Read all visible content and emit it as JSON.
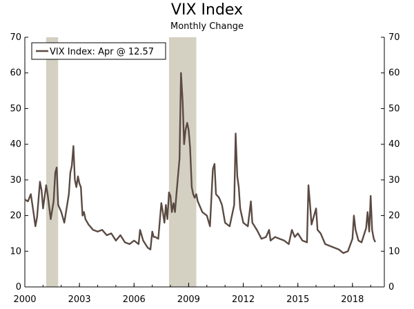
{
  "chart_data": {
    "type": "line",
    "title": "VIX Index",
    "subtitle": "Monthly Change",
    "legend": {
      "position": "top-left",
      "entries": [
        "VIX Index: Apr @ 12.57"
      ]
    },
    "ylim": [
      0,
      70
    ],
    "y_ticks": [
      0,
      10,
      20,
      30,
      40,
      50,
      60,
      70
    ],
    "y_tick_labels": [
      "0",
      "10",
      "20",
      "30",
      "40",
      "50",
      "60",
      "70"
    ],
    "xlim": [
      2000.0,
      2019.75
    ],
    "x_ticks": [
      2000,
      2003,
      2006,
      2009,
      2012,
      2015,
      2018
    ],
    "x_tick_labels": [
      "2000",
      "2003",
      "2006",
      "2009",
      "2012",
      "2015",
      "2018"
    ],
    "grid": false,
    "colors": {
      "line": "#5a4a42",
      "recession": "#d4d0c2",
      "axis": "#000000"
    },
    "recessions": [
      [
        2001.17,
        2001.83
      ],
      [
        2007.92,
        2009.42
      ]
    ],
    "series": [
      {
        "name": "VIX Index: Apr @ 12.57",
        "x": [
          2000.0,
          2000.17,
          2000.33,
          2000.5,
          2000.58,
          2000.67,
          2000.83,
          2000.92,
          2001.0,
          2001.17,
          2001.25,
          2001.42,
          2001.58,
          2001.67,
          2001.75,
          2001.83,
          2001.92,
          2002.0,
          2002.17,
          2002.42,
          2002.5,
          2002.58,
          2002.67,
          2002.75,
          2002.83,
          2002.92,
          2003.0,
          2003.08,
          2003.17,
          2003.25,
          2003.33,
          2003.5,
          2003.75,
          2004.0,
          2004.25,
          2004.5,
          2004.75,
          2005.0,
          2005.25,
          2005.5,
          2005.75,
          2006.0,
          2006.25,
          2006.33,
          2006.5,
          2006.75,
          2006.9,
          2007.0,
          2007.08,
          2007.17,
          2007.33,
          2007.5,
          2007.58,
          2007.67,
          2007.75,
          2007.83,
          2007.92,
          2008.0,
          2008.08,
          2008.17,
          2008.25,
          2008.33,
          2008.5,
          2008.58,
          2008.67,
          2008.75,
          2008.83,
          2008.92,
          2009.0,
          2009.08,
          2009.17,
          2009.25,
          2009.33,
          2009.42,
          2009.5,
          2009.75,
          2010.0,
          2010.17,
          2010.33,
          2010.42,
          2010.5,
          2010.67,
          2010.83,
          2011.0,
          2011.25,
          2011.5,
          2011.58,
          2011.67,
          2011.75,
          2011.83,
          2012.0,
          2012.25,
          2012.42,
          2012.5,
          2012.75,
          2013.0,
          2013.25,
          2013.42,
          2013.5,
          2013.75,
          2014.0,
          2014.25,
          2014.5,
          2014.67,
          2014.75,
          2014.83,
          2015.0,
          2015.25,
          2015.5,
          2015.58,
          2015.67,
          2015.75,
          2016.0,
          2016.08,
          2016.25,
          2016.5,
          2016.75,
          2017.0,
          2017.25,
          2017.5,
          2017.75,
          2018.0,
          2018.08,
          2018.17,
          2018.33,
          2018.5,
          2018.75,
          2018.83,
          2018.92,
          2019.0,
          2019.08,
          2019.17,
          2019.25
        ],
        "values": [
          24.5,
          24.0,
          26.0,
          20.0,
          17.0,
          19.5,
          29.5,
          27.0,
          22.0,
          28.5,
          26.0,
          19.0,
          24.0,
          32.0,
          33.5,
          23.0,
          22.0,
          21.0,
          18.0,
          26.0,
          32.0,
          34.0,
          39.5,
          30.0,
          28.0,
          31.0,
          29.0,
          28.0,
          20.0,
          21.0,
          19.0,
          17.5,
          16.0,
          15.5,
          16.0,
          14.5,
          15.0,
          13.0,
          14.5,
          12.5,
          12.0,
          13.0,
          12.0,
          16.0,
          13.0,
          11.0,
          10.5,
          15.5,
          14.0,
          14.0,
          13.5,
          23.5,
          21.0,
          18.0,
          23.0,
          19.0,
          26.5,
          25.5,
          21.0,
          23.5,
          21.0,
          26.0,
          36.0,
          60.0,
          52.0,
          40.0,
          44.0,
          46.0,
          44.0,
          39.0,
          28.0,
          26.0,
          25.0,
          26.0,
          24.0,
          21.0,
          20.0,
          17.0,
          33.0,
          34.5,
          26.0,
          25.0,
          23.0,
          18.0,
          17.0,
          23.0,
          43.0,
          31.0,
          28.0,
          22.0,
          18.0,
          17.0,
          24.0,
          18.0,
          16.0,
          13.5,
          14.0,
          16.0,
          13.0,
          14.0,
          13.5,
          13.0,
          12.0,
          16.0,
          15.0,
          14.0,
          15.0,
          13.0,
          12.5,
          28.5,
          23.0,
          17.5,
          22.0,
          16.0,
          15.0,
          12.0,
          11.5,
          11.0,
          10.5,
          9.5,
          10.0,
          13.5,
          20.0,
          16.0,
          13.0,
          12.5,
          16.5,
          21.0,
          15.5,
          25.5,
          16.0,
          13.5,
          12.57
        ]
      }
    ]
  }
}
